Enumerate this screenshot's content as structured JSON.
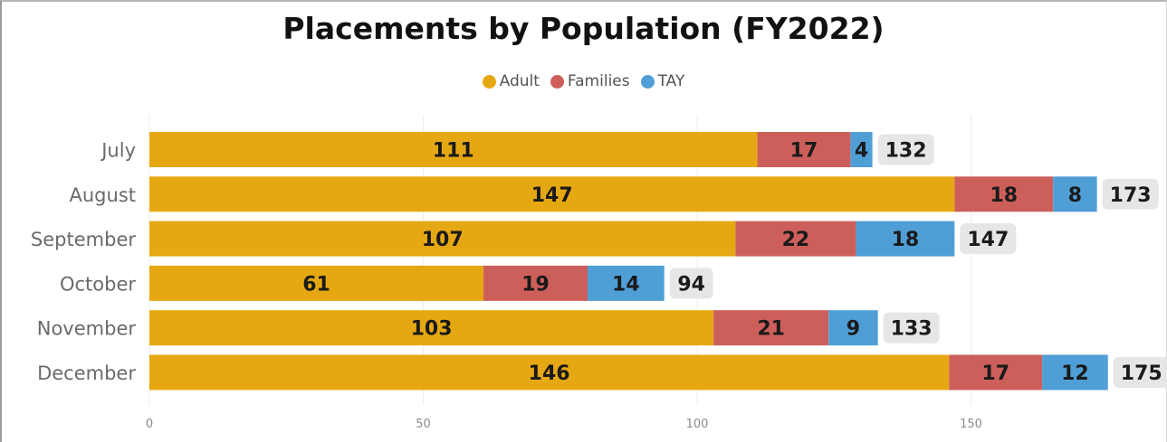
{
  "chart_data": {
    "type": "bar",
    "orientation": "horizontal",
    "stacked": true,
    "title": "Placements by Population (FY2022)",
    "categories": [
      "July",
      "August",
      "September",
      "October",
      "November",
      "December"
    ],
    "series": [
      {
        "name": "Adult",
        "color": "#E6A812",
        "values": [
          111,
          147,
          107,
          61,
          103,
          146
        ]
      },
      {
        "name": "Families",
        "color": "#CD5F5A",
        "values": [
          17,
          18,
          22,
          19,
          21,
          17
        ]
      },
      {
        "name": "TAY",
        "color": "#4F9FD6",
        "values": [
          4,
          8,
          18,
          14,
          9,
          12
        ]
      }
    ],
    "totals": [
      132,
      173,
      147,
      94,
      133,
      175
    ],
    "xlim": [
      0,
      175
    ],
    "xticks": [
      0,
      50,
      100,
      150
    ],
    "grid": true,
    "legend_position": "top-center"
  }
}
